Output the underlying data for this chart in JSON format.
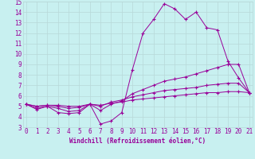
{
  "xlabel": "Windchill (Refroidissement éolien,°C)",
  "bg_color": "#c8f0f0",
  "grid_color": "#b8d8d8",
  "line_color": "#990099",
  "x_min": 0,
  "x_max": 21,
  "y_min": 3,
  "y_max": 15,
  "series": [
    {
      "x": [
        0,
        1,
        2,
        3,
        4,
        5,
        6,
        7,
        8,
        9,
        10,
        11,
        12,
        13,
        14,
        15,
        16,
        17,
        18,
        19,
        20,
        21
      ],
      "y": [
        5.2,
        4.7,
        5.0,
        4.4,
        4.3,
        4.4,
        5.2,
        3.3,
        3.6,
        4.4,
        8.5,
        12.0,
        13.3,
        14.8,
        14.3,
        13.3,
        14.0,
        12.5,
        12.3,
        9.3,
        7.7,
        6.3
      ]
    },
    {
      "x": [
        0,
        1,
        2,
        3,
        4,
        5,
        6,
        7,
        8,
        9,
        10,
        11,
        12,
        13,
        14,
        15,
        16,
        17,
        18,
        19,
        20,
        21
      ],
      "y": [
        5.2,
        4.8,
        5.0,
        4.8,
        4.5,
        4.6,
        5.2,
        4.6,
        5.2,
        5.5,
        6.2,
        6.6,
        7.0,
        7.4,
        7.6,
        7.8,
        8.1,
        8.4,
        8.7,
        9.0,
        9.0,
        6.3
      ]
    },
    {
      "x": [
        0,
        1,
        2,
        3,
        4,
        5,
        6,
        7,
        8,
        9,
        10,
        11,
        12,
        13,
        14,
        15,
        16,
        17,
        18,
        19,
        20,
        21
      ],
      "y": [
        5.2,
        5.0,
        5.1,
        5.0,
        4.8,
        4.9,
        5.2,
        5.0,
        5.4,
        5.6,
        5.9,
        6.1,
        6.3,
        6.5,
        6.6,
        6.7,
        6.8,
        7.0,
        7.1,
        7.2,
        7.2,
        6.3
      ]
    },
    {
      "x": [
        0,
        1,
        2,
        3,
        4,
        5,
        6,
        7,
        8,
        9,
        10,
        11,
        12,
        13,
        14,
        15,
        16,
        17,
        18,
        19,
        20,
        21
      ],
      "y": [
        5.2,
        5.0,
        5.1,
        5.1,
        5.0,
        5.0,
        5.2,
        5.1,
        5.3,
        5.4,
        5.6,
        5.7,
        5.8,
        5.9,
        6.0,
        6.1,
        6.2,
        6.3,
        6.3,
        6.4,
        6.4,
        6.3
      ]
    }
  ]
}
